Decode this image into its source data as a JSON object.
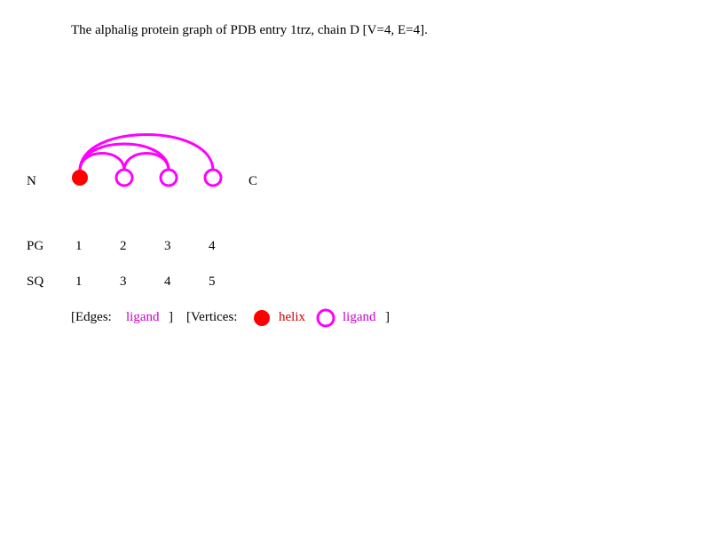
{
  "title": "The alphalig protein graph of PDB entry 1trz, chain D [V=4, E=4].",
  "terminals": {
    "n": "N",
    "c": "C"
  },
  "rows": {
    "pg_label": "PG",
    "sq_label": "SQ",
    "pg": [
      "1",
      "2",
      "3",
      "4"
    ],
    "sq": [
      "1",
      "3",
      "4",
      "5"
    ]
  },
  "vertices": [
    {
      "id": 1,
      "type": "helix"
    },
    {
      "id": 2,
      "type": "ligand"
    },
    {
      "id": 3,
      "type": "ligand"
    },
    {
      "id": 4,
      "type": "ligand"
    }
  ],
  "edges": [
    {
      "from": 1,
      "to": 2,
      "type": "ligand"
    },
    {
      "from": 1,
      "to": 3,
      "type": "ligand"
    },
    {
      "from": 1,
      "to": 4,
      "type": "ligand"
    },
    {
      "from": 2,
      "to": 3,
      "type": "ligand"
    }
  ],
  "legend": {
    "edges_label": "[Edges:",
    "edges_close": "]",
    "edge_ligand": "ligand",
    "vertices_label": "[Vertices:",
    "vertex_helix": "helix",
    "vertex_ligand": "ligand",
    "vertices_close": "]"
  },
  "colors": {
    "helix": "#ff0000",
    "ligand": "#ff00ff",
    "helix_label": "#cc0000",
    "ligand_label": "#cc00cc"
  }
}
